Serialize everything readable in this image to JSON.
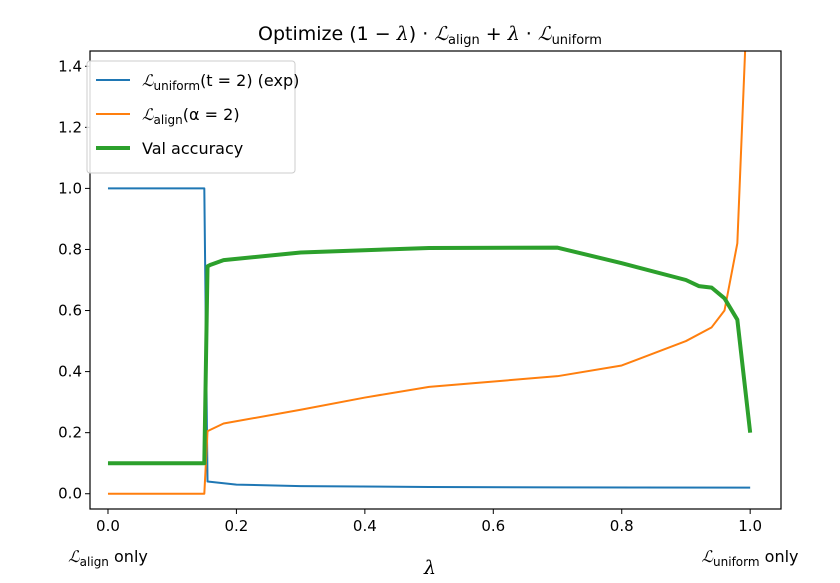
{
  "chart_data": {
    "type": "line",
    "title": {
      "prefix": "Optimize (1 − ",
      "lambda": "λ",
      "mid1": ") · ",
      "L": "ℒ",
      "sub_align": "align",
      "mid2": " + ",
      "mid3": " · ",
      "sub_uniform": "uniform"
    },
    "xlabel": "λ",
    "x_extra_labels": {
      "left": {
        "L": "ℒ",
        "sub": "align",
        "suffix": " only"
      },
      "right": {
        "L": "ℒ",
        "sub": "uniform",
        "suffix": " only"
      }
    },
    "xlim": [
      -0.028,
      1.048
    ],
    "ylim": [
      -0.05,
      1.45
    ],
    "xticks": [
      "0.0",
      "0.2",
      "0.4",
      "0.6",
      "0.8",
      "1.0"
    ],
    "yticks": [
      "0.0",
      "0.2",
      "0.4",
      "0.6",
      "0.8",
      "1.0",
      "1.2",
      "1.4"
    ],
    "grid": false,
    "legend_position": "top-left",
    "series": [
      {
        "name": "ℒuniform(t = 2) (exp)",
        "legend": {
          "L": "ℒ",
          "sub": "uniform",
          "rest": "(t = 2) (exp)"
        },
        "color": "#1f77b4",
        "width": 2,
        "x": [
          0,
          0.15,
          0.155,
          0.2,
          0.3,
          0.5,
          0.7,
          1.0
        ],
        "y": [
          1.0,
          1.0,
          0.04,
          0.03,
          0.025,
          0.022,
          0.021,
          0.02
        ]
      },
      {
        "name": "ℒalign(α = 2)",
        "legend": {
          "L": "ℒ",
          "sub": "align",
          "rest": "(α = 2)"
        },
        "color": "#ff7f0e",
        "width": 2,
        "x": [
          0,
          0.15,
          0.155,
          0.18,
          0.3,
          0.4,
          0.5,
          0.7,
          0.8,
          0.9,
          0.94,
          0.96,
          0.98,
          0.995
        ],
        "y": [
          0,
          0,
          0.205,
          0.23,
          0.275,
          0.315,
          0.35,
          0.385,
          0.42,
          0.5,
          0.545,
          0.6,
          0.82,
          1.6
        ]
      },
      {
        "name": "Val accuracy",
        "legend": {
          "L": "",
          "sub": "",
          "rest": "Val accuracy"
        },
        "color": "#2ca02c",
        "width": 4,
        "x": [
          0,
          0.15,
          0.155,
          0.16,
          0.18,
          0.3,
          0.5,
          0.7,
          0.8,
          0.9,
          0.92,
          0.94,
          0.96,
          0.98,
          1.0
        ],
        "y": [
          0.1,
          0.1,
          0.745,
          0.75,
          0.765,
          0.79,
          0.805,
          0.806,
          0.755,
          0.7,
          0.68,
          0.675,
          0.64,
          0.57,
          0.2
        ]
      }
    ]
  }
}
